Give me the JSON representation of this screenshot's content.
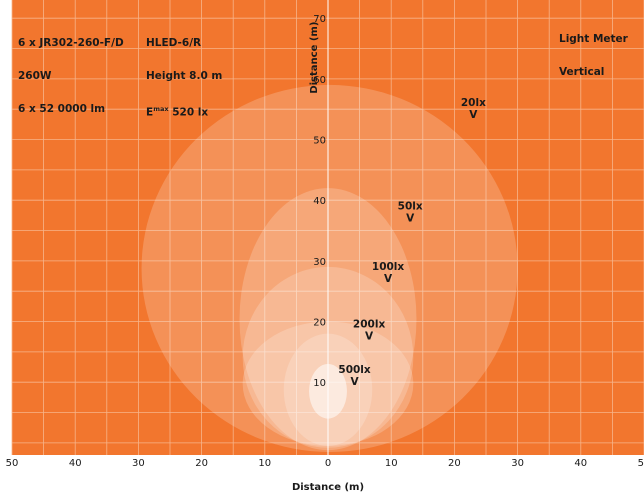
{
  "info_left": [
    "6 x JR302-260-F/D",
    "260W",
    "6 x 52 0000 lm"
  ],
  "info_mid": [
    "HLED-6/R",
    "Height 8.0 m"
  ],
  "info_emax": {
    "symbol": "E",
    "sub": "max",
    "value": " 520 lx"
  },
  "info_right": [
    "Light Meter",
    "Vertical"
  ],
  "colors": {
    "background": "#f2762e",
    "grid": "#f7b48a",
    "axis": "#ffffff",
    "text": "#1a1a1a",
    "contour_fill": "#ffffff"
  },
  "chart_data": {
    "type": "contour",
    "xlabel": "Distance (m)",
    "ylabel": "Distance (m)",
    "xlim": [
      -50,
      50
    ],
    "ylim": [
      -2,
      73
    ],
    "x_ticks": [
      -50,
      -40,
      -30,
      -20,
      -10,
      0,
      10,
      20,
      30,
      40,
      50
    ],
    "x_tick_labels": [
      "50",
      "40",
      "30",
      "20",
      "10",
      "0",
      "10",
      "20",
      "30",
      "40",
      "50"
    ],
    "y_ticks": [
      10,
      20,
      30,
      40,
      50,
      60,
      70
    ],
    "y_tick_labels": [
      "10",
      "20",
      "30",
      "40",
      "50",
      "60",
      "70"
    ],
    "contours": [
      {
        "label": "20lx",
        "sub": "V",
        "x_range": [
          -29.5,
          30
        ],
        "y_range": [
          -1.5,
          59
        ],
        "label_pos": [
          23,
          55.5
        ]
      },
      {
        "label": "50lx",
        "sub": "V",
        "x_range": [
          -14,
          14
        ],
        "y_range": [
          -1.2,
          42
        ],
        "label_pos": [
          13,
          38.5
        ]
      },
      {
        "label": "100lx",
        "sub": "V",
        "x_range": [
          -13.5,
          13.5
        ],
        "y_range": [
          -0.8,
          29
        ],
        "label_pos": [
          9.5,
          28.5
        ]
      },
      {
        "label": "200lx",
        "sub": "V",
        "x_range": [
          -13.5,
          13.5
        ],
        "y_range": [
          -0.5,
          20
        ],
        "label_pos": [
          6.5,
          19
        ]
      },
      {
        "label": "500lx",
        "sub": "V",
        "x_range": [
          -7,
          7
        ],
        "y_range": [
          -0.5,
          18
        ],
        "label_pos": [
          4.2,
          11.5
        ]
      },
      {
        "label": "",
        "sub": "",
        "x_range": [
          -3,
          3
        ],
        "y_range": [
          4,
          13
        ],
        "label_pos": null
      }
    ]
  }
}
